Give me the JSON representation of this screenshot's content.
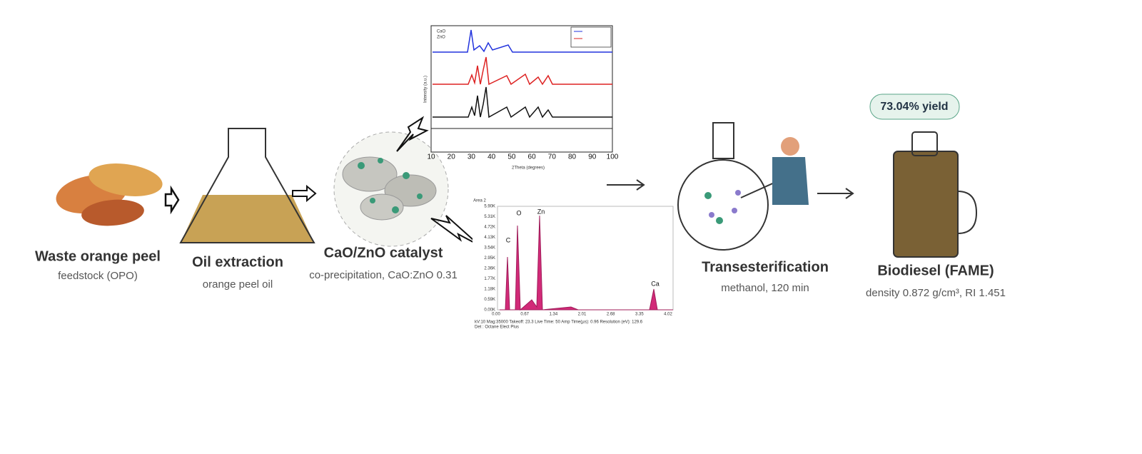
{
  "steps": [
    {
      "label": "Waste orange peel",
      "sublabel": "feedstock (OPO)"
    },
    {
      "label": "Oil extraction",
      "sublabel": "orange peel oil"
    },
    {
      "label": "CaO/ZnO catalyst",
      "sublabel": "co-precipitation, CaO:ZnO 0.31"
    },
    {
      "label": "Transesterification",
      "sublabel": "methanol, 120 min"
    },
    {
      "label": "Biodiesel (FAME)",
      "sublabel": "density 0.872 g/cm³, RI 1.451"
    }
  ],
  "badge": "73.04% yield",
  "xrd": {
    "x_label": "2Theta (degrees)",
    "y_label": "Intensity (a.u.)",
    "x_ticks": [
      "10",
      "20",
      "30",
      "40",
      "50",
      "60",
      "70",
      "80",
      "90",
      "100"
    ],
    "legend": [
      "CaO",
      "ZnO"
    ]
  },
  "edx": {
    "area": "Area 2",
    "y_ticks": [
      "5.90K",
      "5.31K",
      "4.72K",
      "4.13K",
      "3.54K",
      "2.95K",
      "2.36K",
      "1.77K",
      "1.18K",
      "0.59K",
      "0.00K"
    ],
    "x_ticks": [
      "0.00",
      "0.67",
      "1.34",
      "2.01",
      "2.68",
      "3.35",
      "4.02"
    ],
    "peaks": [
      "C",
      "O",
      "Zn",
      "Ca"
    ],
    "footer": [
      "kV:10    Mag:35000    Takeoff: 23.3    Live Time: 50    Amp Time(µs): 0.96    Resolution (eV): 129.6",
      "Det : Octane Elect Plus"
    ]
  }
}
